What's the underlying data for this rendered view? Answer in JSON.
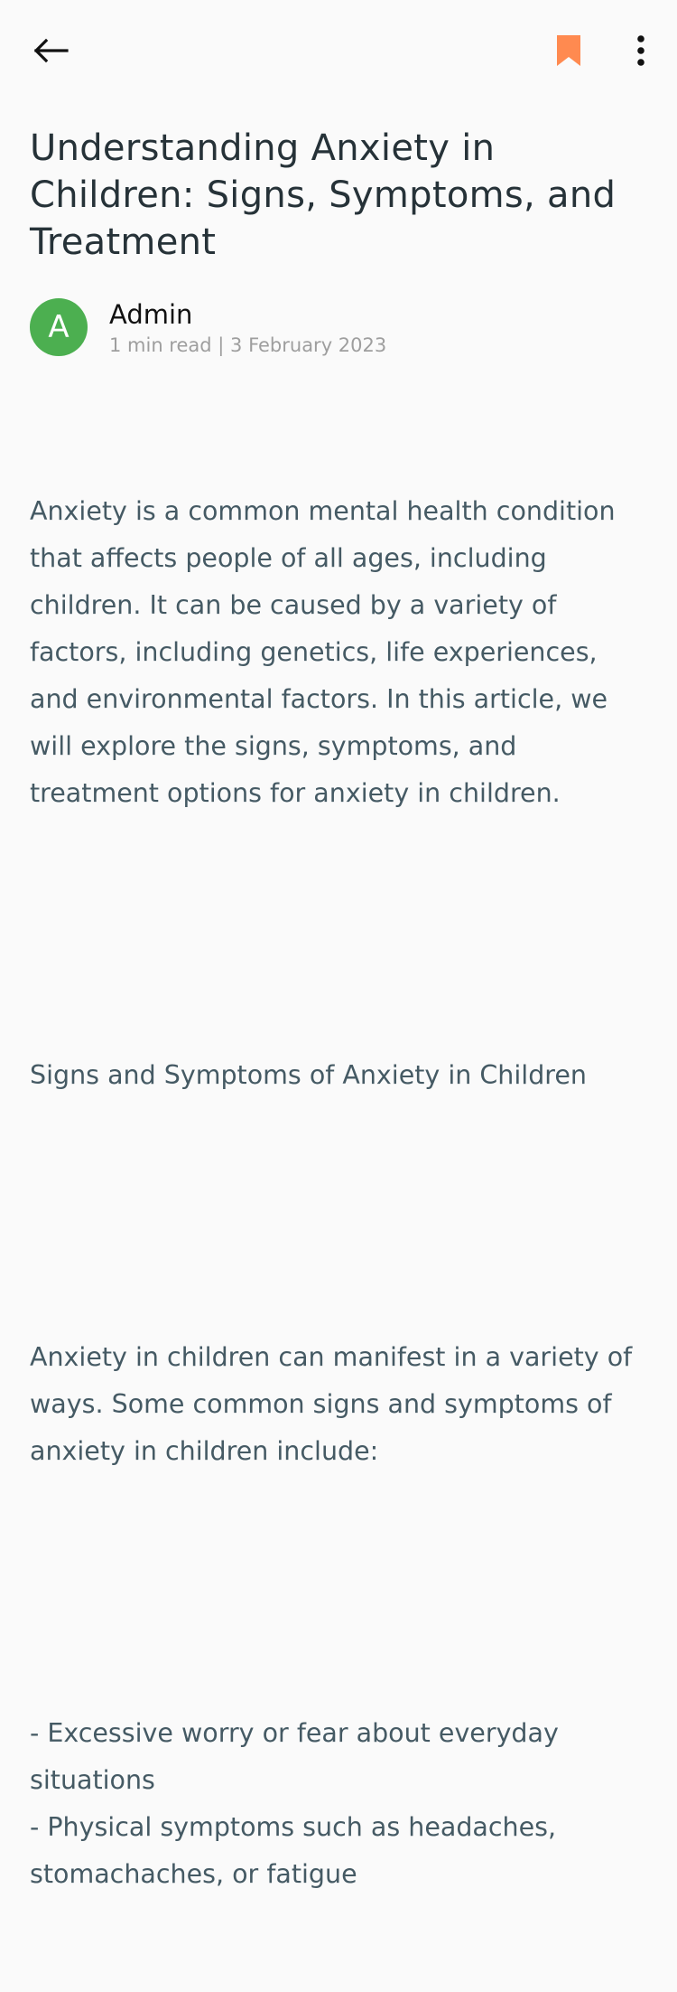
{
  "topbar": {
    "back_icon": "arrow-left-icon",
    "bookmark_icon": "bookmark-icon",
    "bookmark_color": "#ff8a50",
    "more_icon": "more-vertical-icon"
  },
  "article": {
    "title": "Understanding Anxiety in Children: Signs, Symptoms, and Treatment",
    "author": {
      "initial": "A",
      "avatar_color": "#4caf50",
      "name": "Admin",
      "meta": "1 min read | 3 February 2023"
    },
    "paragraphs": [
      "Anxiety is a common mental health condition that affects people of all ages, including children. It can be caused by a variety of factors, including genetics, life experiences, and environmental factors. In this article, we will explore the signs, symptoms, and treatment options for anxiety in children.",
      "Signs and Symptoms of Anxiety in Children",
      "Anxiety in children can manifest in a variety of ways. Some common signs and symptoms of anxiety in children include:",
      "- Excessive worry or fear about everyday situations\n- Physical symptoms such as headaches, stomachaches, or fatigue"
    ]
  }
}
